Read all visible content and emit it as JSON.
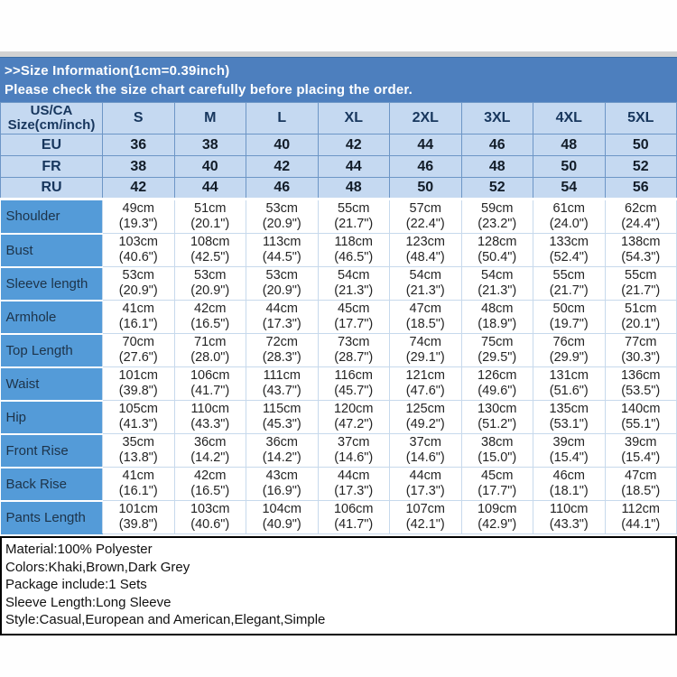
{
  "chart_data": {
    "type": "table",
    "title": ">>Size Information(1cm=0.39inch)",
    "subtitle": "Please check the size chart carefully before placing the order.",
    "corner_header": [
      "US/CA",
      "Size(cm/inch)"
    ],
    "columns": [
      "S",
      "M",
      "L",
      "XL",
      "2XL",
      "3XL",
      "4XL",
      "5XL"
    ],
    "region_rows": [
      {
        "label": "EU",
        "values": [
          "36",
          "38",
          "40",
          "42",
          "44",
          "46",
          "48",
          "50"
        ]
      },
      {
        "label": "FR",
        "values": [
          "38",
          "40",
          "42",
          "44",
          "46",
          "48",
          "50",
          "52"
        ]
      },
      {
        "label": "RU",
        "values": [
          "42",
          "44",
          "46",
          "48",
          "50",
          "52",
          "54",
          "56"
        ]
      }
    ],
    "measurement_rows": [
      {
        "label": "Shoulder",
        "cm": [
          "49cm",
          "51cm",
          "53cm",
          "55cm",
          "57cm",
          "59cm",
          "61cm",
          "62cm"
        ],
        "inch": [
          "(19.3\")",
          "(20.1\")",
          "(20.9\")",
          "(21.7\")",
          "(22.4\")",
          "(23.2\")",
          "(24.0\")",
          "(24.4\")"
        ]
      },
      {
        "label": "Bust",
        "cm": [
          "103cm",
          "108cm",
          "113cm",
          "118cm",
          "123cm",
          "128cm",
          "133cm",
          "138cm"
        ],
        "inch": [
          "(40.6\")",
          "(42.5\")",
          "(44.5\")",
          "(46.5\")",
          "(48.4\")",
          "(50.4\")",
          "(52.4\")",
          "(54.3\")"
        ]
      },
      {
        "label": "Sleeve length",
        "cm": [
          "53cm",
          "53cm",
          "53cm",
          "54cm",
          "54cm",
          "54cm",
          "55cm",
          "55cm"
        ],
        "inch": [
          "(20.9\")",
          "(20.9\")",
          "(20.9\")",
          "(21.3\")",
          "(21.3\")",
          "(21.3\")",
          "(21.7\")",
          "(21.7\")"
        ]
      },
      {
        "label": "Armhole",
        "cm": [
          "41cm",
          "42cm",
          "44cm",
          "45cm",
          "47cm",
          "48cm",
          "50cm",
          "51cm"
        ],
        "inch": [
          "(16.1\")",
          "(16.5\")",
          "(17.3\")",
          "(17.7\")",
          "(18.5\")",
          "(18.9\")",
          "(19.7\")",
          "(20.1\")"
        ]
      },
      {
        "label": "Top Length",
        "cm": [
          "70cm",
          "71cm",
          "72cm",
          "73cm",
          "74cm",
          "75cm",
          "76cm",
          "77cm"
        ],
        "inch": [
          "(27.6\")",
          "(28.0\")",
          "(28.3\")",
          "(28.7\")",
          "(29.1\")",
          "(29.5\")",
          "(29.9\")",
          "(30.3\")"
        ]
      },
      {
        "label": "Waist",
        "cm": [
          "101cm",
          "106cm",
          "111cm",
          "116cm",
          "121cm",
          "126cm",
          "131cm",
          "136cm"
        ],
        "inch": [
          "(39.8\")",
          "(41.7\")",
          "(43.7\")",
          "(45.7\")",
          "(47.6\")",
          "(49.6\")",
          "(51.6\")",
          "(53.5\")"
        ]
      },
      {
        "label": "Hip",
        "cm": [
          "105cm",
          "110cm",
          "115cm",
          "120cm",
          "125cm",
          "130cm",
          "135cm",
          "140cm"
        ],
        "inch": [
          "(41.3\")",
          "(43.3\")",
          "(45.3\")",
          "(47.2\")",
          "(49.2\")",
          "(51.2\")",
          "(53.1\")",
          "(55.1\")"
        ]
      },
      {
        "label": "Front Rise",
        "cm": [
          "35cm",
          "36cm",
          "36cm",
          "37cm",
          "37cm",
          "38cm",
          "39cm",
          "39cm"
        ],
        "inch": [
          "(13.8\")",
          "(14.2\")",
          "(14.2\")",
          "(14.6\")",
          "(14.6\")",
          "(15.0\")",
          "(15.4\")",
          "(15.4\")"
        ]
      },
      {
        "label": "Back Rise",
        "cm": [
          "41cm",
          "42cm",
          "43cm",
          "44cm",
          "44cm",
          "45cm",
          "46cm",
          "47cm"
        ],
        "inch": [
          "(16.1\")",
          "(16.5\")",
          "(16.9\")",
          "(17.3\")",
          "(17.3\")",
          "(17.7\")",
          "(18.1\")",
          "(18.5\")"
        ]
      },
      {
        "label": "Pants Length",
        "cm": [
          "101cm",
          "103cm",
          "104cm",
          "106cm",
          "107cm",
          "109cm",
          "110cm",
          "112cm"
        ],
        "inch": [
          "(39.8\")",
          "(40.6\")",
          "(40.9\")",
          "(41.7\")",
          "(42.1\")",
          "(42.9\")",
          "(43.3\")",
          "(44.1\")"
        ]
      }
    ],
    "footer_lines": [
      "Material:100% Polyester",
      "Colors:Khaki,Brown,Dark Grey",
      "Package include:1 Sets",
      "Sleeve Length:Long Sleeve",
      "Style:Casual,European and American,Elegant,Simple"
    ],
    "layout": {
      "legend": "none",
      "grid": "on"
    }
  },
  "colors": {
    "banner_blue": "#4d7fbe",
    "header_light_blue": "#c5d9f1",
    "label_blue": "#549bd8",
    "dark_navy_text": "#17365d",
    "header_border_blue": "#6d96c6",
    "body_border_blue": "#c7d9ec",
    "divider_grey": "#d2d2d2",
    "info_border_black": "#000000"
  }
}
